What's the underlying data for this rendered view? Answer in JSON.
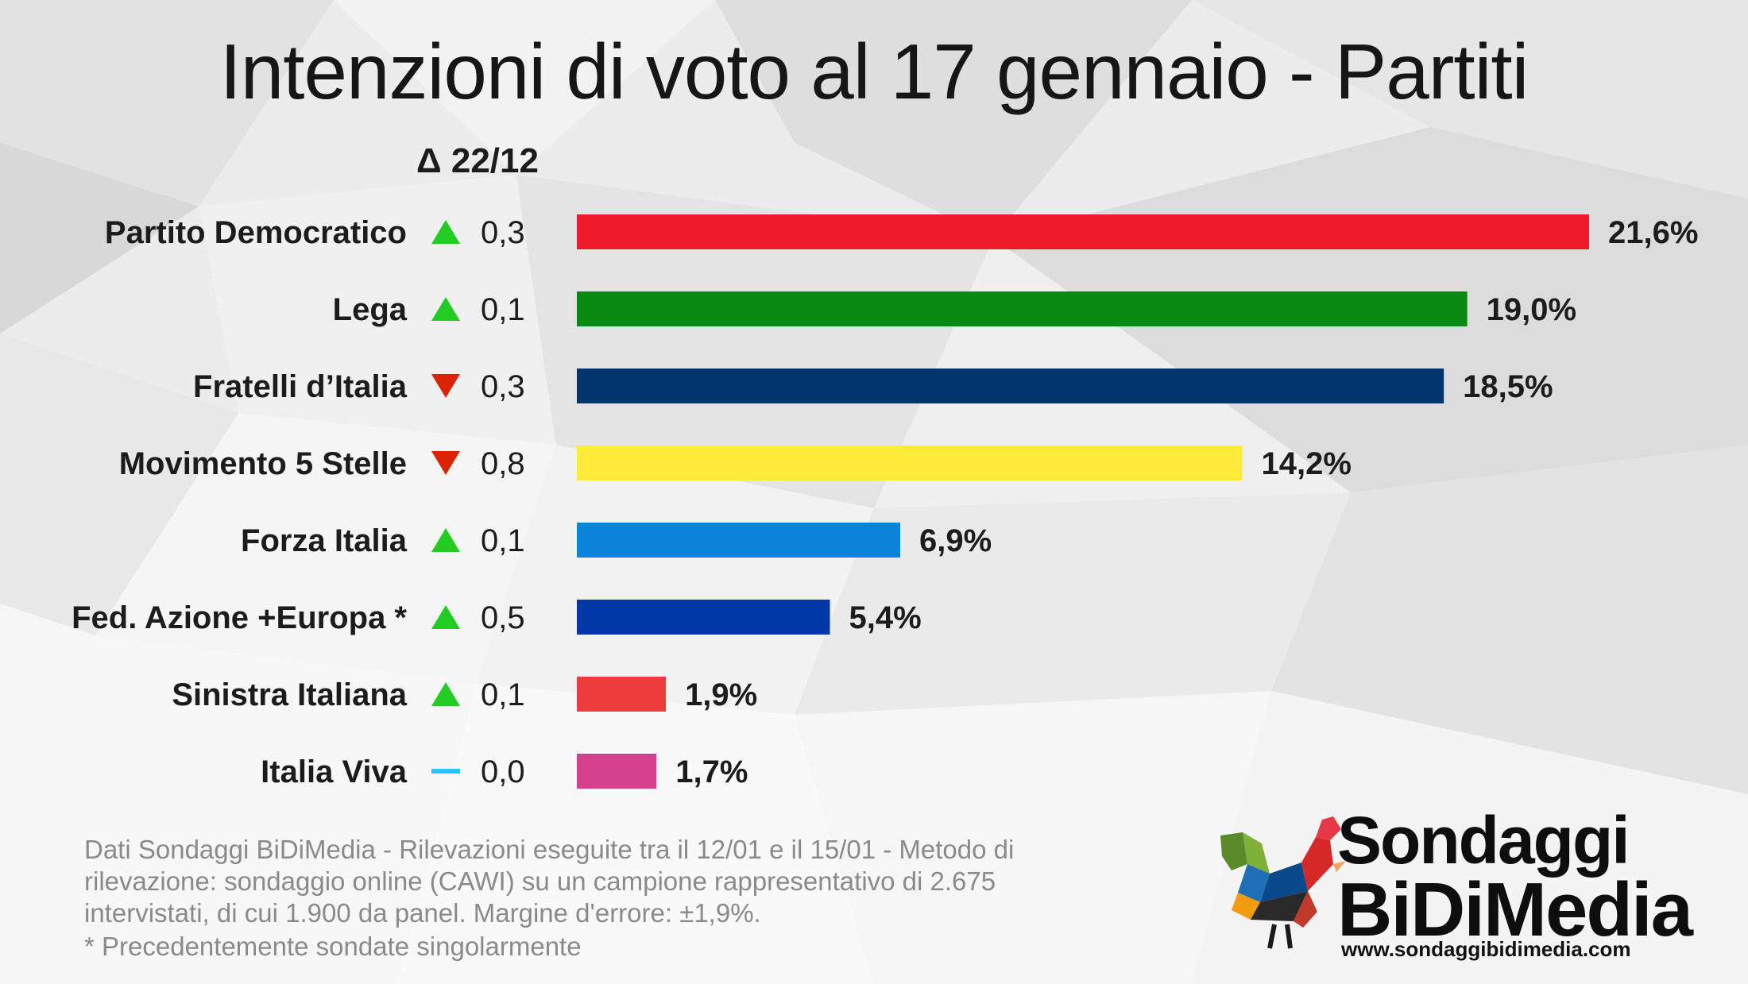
{
  "title": "Intenzioni di voto al 17 gennaio - Partiti",
  "delta_header": "Δ 22/12",
  "colors": {
    "up": "#22cc22",
    "down": "#dd2200",
    "flat": "#22c8f0"
  },
  "chart_data": {
    "type": "bar",
    "orientation": "horizontal",
    "title": "Intenzioni di voto al 17 gennaio - Partiti",
    "categories": [
      "Partito Democratico",
      "Lega",
      "Fratelli d’Italia",
      "Movimento 5 Stelle",
      "Forza Italia",
      "Fed. Azione  +Europa *",
      "Sinistra Italiana",
      "Italia Viva"
    ],
    "values": [
      21.6,
      19.0,
      18.5,
      14.2,
      6.9,
      5.4,
      1.9,
      1.7
    ],
    "value_labels": [
      "21,6%",
      "19,0%",
      "18,5%",
      "14,2%",
      "6,9%",
      "5,4%",
      "1,9%",
      "1,7%"
    ],
    "bar_colors": [
      "#ee1c2b",
      "#0b8a12",
      "#03346c",
      "#ffeb3b",
      "#0a84d8",
      "#0038a8",
      "#ee3b3b",
      "#d6418f"
    ],
    "delta": {
      "header": "Δ 22/12",
      "values": [
        0.3,
        0.1,
        0.3,
        0.8,
        0.1,
        0.5,
        0.1,
        0.0
      ],
      "labels": [
        "0,3",
        "0,1",
        "0,3",
        "0,8",
        "0,1",
        "0,5",
        "0,1",
        "0,0"
      ],
      "direction": [
        "up",
        "up",
        "down",
        "down",
        "up",
        "up",
        "up",
        "flat"
      ]
    },
    "grid": false,
    "legend": "none"
  },
  "footnote": {
    "text": "Dati Sondaggi BiDiMedia - Rilevazioni eseguite tra il 12/01 e il 15/01 - Metodo di rilevazione: sondaggio online (CAWI) su un campione rappresentativo di 2.675 intervistati, di cui 1.900 da panel. Margine d'errore: ±1,9%.",
    "asterisk_note": "* Precedentemente sondate singolarmente"
  },
  "logo": {
    "line1": "Sondaggi",
    "line2": "BiDiMedia",
    "url": "www.sondaggibidimedia.com"
  }
}
